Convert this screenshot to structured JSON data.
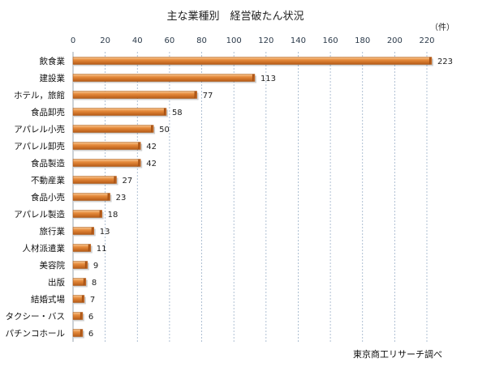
{
  "chart_data": {
    "type": "bar",
    "orientation": "horizontal",
    "title": "主な業種別　経営破たん状況",
    "unit_label": "（件）",
    "source": "東京商工リサーチ調べ",
    "xlim": [
      0,
      220
    ],
    "xticks": [
      "0",
      "20",
      "40",
      "60",
      "80",
      "100",
      "120",
      "140",
      "160",
      "180",
      "200",
      "220"
    ],
    "grid": true,
    "categories": [
      "飲食業",
      "建設業",
      "ホテル，旅館",
      "食品卸売",
      "アパレル小売",
      "アパレル卸売",
      "食品製造",
      "不動産業",
      "食品小売",
      "アパレル製造",
      "旅行業",
      "人材派遣業",
      "美容院",
      "出版",
      "結婚式場",
      "タクシー・バス",
      "パチンコホール"
    ],
    "values": [
      223,
      113,
      77,
      58,
      50,
      42,
      42,
      27,
      23,
      18,
      13,
      11,
      9,
      8,
      7,
      6,
      6
    ],
    "labels": [
      "223",
      "113",
      "77",
      "58",
      "50",
      "42",
      "42",
      "27",
      "23",
      "18",
      "13",
      "11",
      "9",
      "8",
      "7",
      "6",
      "6"
    ],
    "bar_color": "#d9792a"
  }
}
